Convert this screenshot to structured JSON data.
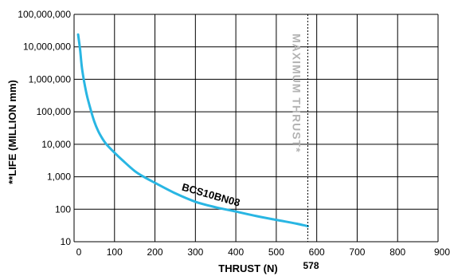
{
  "chart_data": {
    "type": "line",
    "xlabel": "THRUST (N)",
    "ylabel": "**LIFE (MILLION mm)",
    "x_ticks": [
      "0",
      "100",
      "200",
      "300",
      "400",
      "500",
      "600",
      "700",
      "800",
      "900"
    ],
    "y_ticks": [
      "10",
      "100",
      "1,000",
      "10,000",
      "100,000",
      "1,000,000",
      "10,000,000",
      "100,000,000"
    ],
    "xlim": [
      0,
      900
    ],
    "ylim": [
      10,
      100000000
    ],
    "y_scale": "log",
    "grid": true,
    "series": [
      {
        "name": "BCS10BN08",
        "color": "#29b6e3",
        "x": [
          10,
          15,
          20,
          30,
          40,
          50,
          60,
          70,
          80,
          100,
          120,
          150,
          175,
          200,
          250,
          300,
          350,
          400,
          450,
          500,
          550,
          578
        ],
        "y": [
          24000000,
          8000000,
          2000000,
          400000,
          130000,
          50000,
          25000,
          15000,
          10000,
          5500,
          3200,
          1500,
          950,
          650,
          310,
          170,
          115,
          85,
          62,
          47,
          36,
          30
        ]
      }
    ],
    "max_thrust": {
      "value": 578,
      "label": "578",
      "text": "MAXIMUM THRUST*"
    }
  }
}
